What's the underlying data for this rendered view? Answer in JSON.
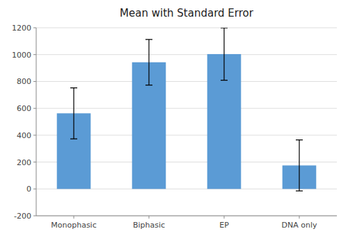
{
  "chart_data": {
    "type": "bar",
    "title": "Mean with Standard Error",
    "categories": [
      "Monophasic",
      "Biphasic",
      "EP",
      "DNA only"
    ],
    "values": [
      563,
      943,
      1004,
      175
    ],
    "errors": [
      190,
      170,
      195,
      190
    ],
    "color": "#5B9BD5",
    "ylim": [
      -200,
      1200
    ],
    "yticks": [
      -200,
      0,
      200,
      400,
      600,
      800,
      1000,
      1200
    ],
    "grid": true
  }
}
